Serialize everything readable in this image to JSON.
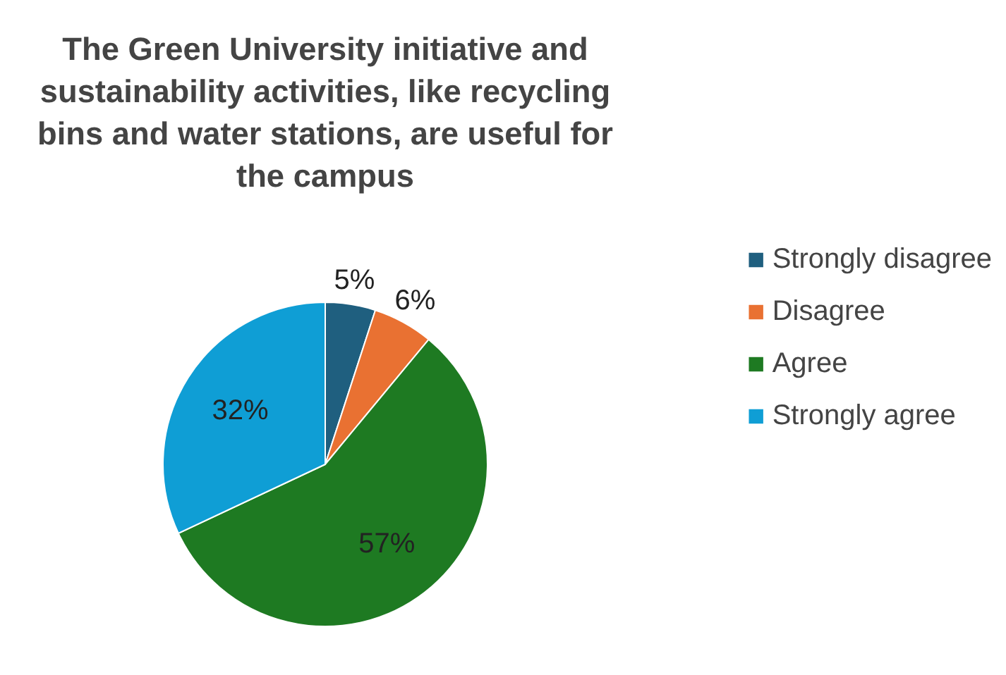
{
  "chart_data": {
    "type": "pie",
    "title": "The Green University initiative and sustainability activities, like recycling bins and water stations, are useful for the campus",
    "categories": [
      "Strongly disagree",
      "Disagree",
      "Agree",
      "Strongly agree"
    ],
    "values": [
      5,
      6,
      57,
      32
    ],
    "colors": [
      "#1f5f7f",
      "#e97132",
      "#1e7a22",
      "#0f9ed5"
    ],
    "value_labels": [
      "5%",
      "6%",
      "57%",
      "32%"
    ],
    "legend": "right"
  }
}
